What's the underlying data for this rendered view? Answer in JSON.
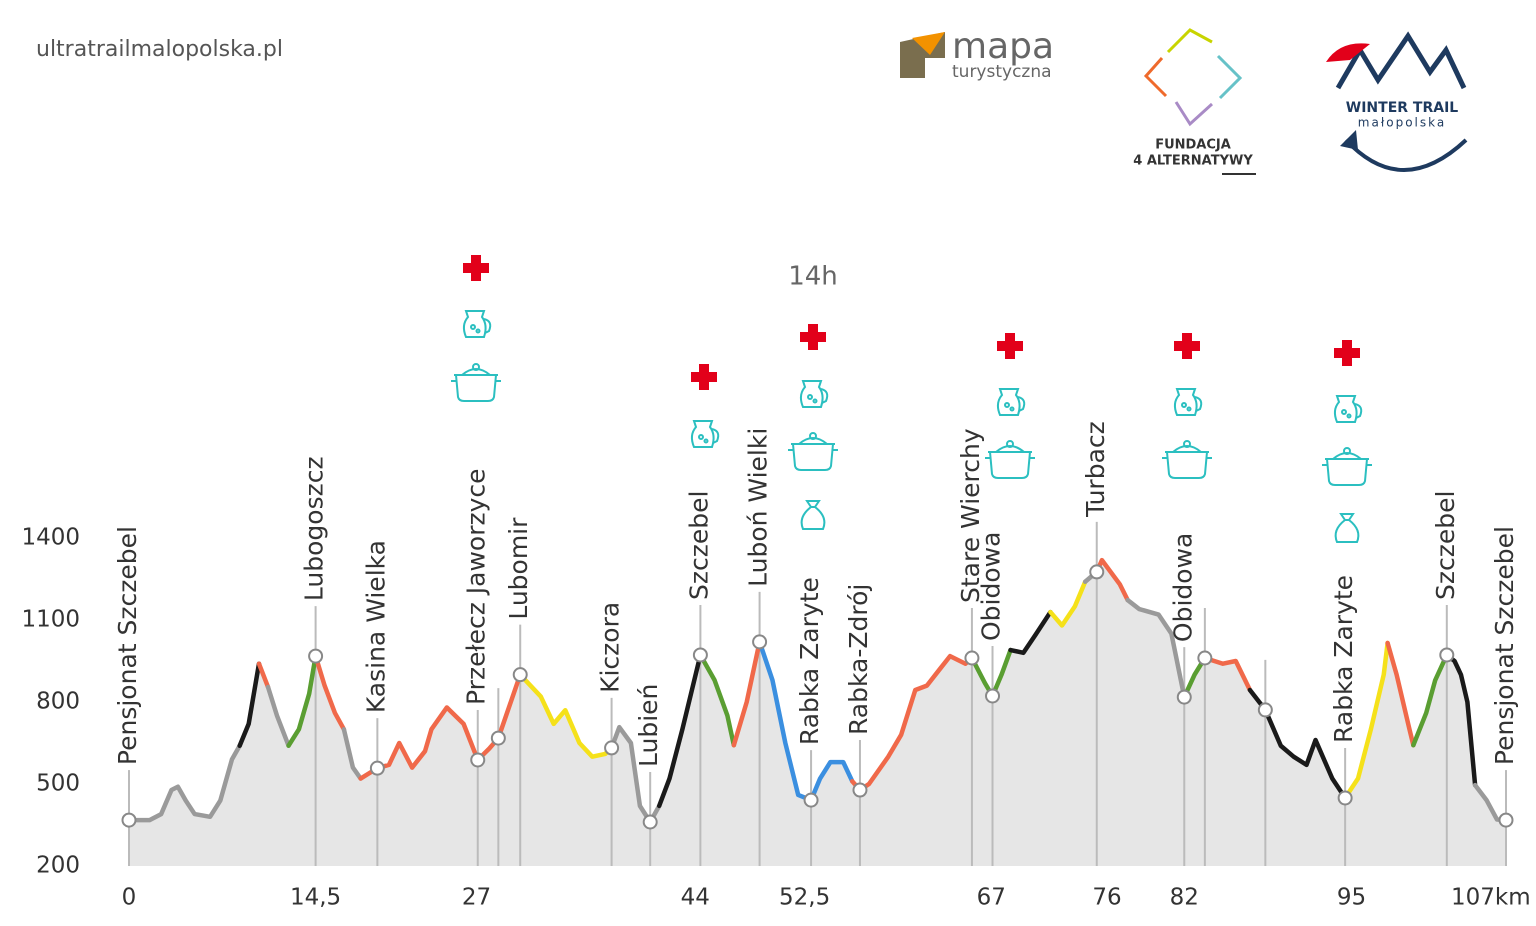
{
  "header": {
    "site": "ultratrailmalopolska.pl",
    "logos": [
      {
        "lines": [
          "mapa",
          "turystyczna"
        ]
      },
      {
        "lines": [
          "FUNDACJA",
          "4 ALTERNATYWY"
        ]
      },
      {
        "lines": [
          "WINTER TRAIL",
          "małopolska"
        ]
      }
    ]
  },
  "chart_data": {
    "type": "elevation-profile",
    "annotation": "14h",
    "area_color": "#e6e6e6",
    "xlim": [
      0,
      107
    ],
    "ylim": [
      200,
      1400
    ],
    "yticks": [
      200,
      500,
      800,
      1100,
      1400
    ],
    "xticks": [
      0,
      {
        "value": 14.5,
        "label": "14,5"
      },
      27,
      44,
      {
        "value": 52.5,
        "label": "52,5"
      },
      67,
      76,
      82,
      95,
      {
        "value": 107,
        "label": "107km"
      }
    ],
    "series": [
      {
        "color": "#9a9a9a",
        "x": [
          0,
          1.6,
          2.5,
          3.3,
          3.8,
          4.4,
          5.1,
          6.3,
          7.1,
          8.0,
          8.6
        ],
        "values": [
          368,
          368,
          390,
          478,
          490,
          440,
          390,
          380,
          440,
          590,
          640
        ]
      },
      {
        "color": "#1a1a1a",
        "x": [
          8.6,
          9.3,
          10.1
        ],
        "values": [
          640,
          720,
          940
        ]
      },
      {
        "color": "#f0694a",
        "x": [
          10.1,
          10.8
        ],
        "values": [
          940,
          855
        ]
      },
      {
        "color": "#9a9a9a",
        "x": [
          10.8,
          11.5,
          12.4
        ],
        "values": [
          855,
          750,
          640
        ]
      },
      {
        "color": "#5a9e32",
        "x": [
          12.4,
          13.2,
          14.0,
          14.5
        ],
        "values": [
          640,
          700,
          830,
          968
        ]
      },
      {
        "color": "#f0694a",
        "x": [
          14.5,
          15.2,
          16.0,
          16.7
        ],
        "values": [
          968,
          860,
          760,
          700
        ]
      },
      {
        "color": "#9a9a9a",
        "x": [
          16.7,
          17.4,
          18.0
        ],
        "values": [
          700,
          560,
          520
        ]
      },
      {
        "color": "#f0694a",
        "x": [
          18.0,
          19.3,
          20.2,
          21.0,
          22.0,
          23.0,
          23.5,
          24.7,
          26.0,
          27.1,
          28.0,
          28.7,
          30.4
        ],
        "values": [
          520,
          558,
          570,
          650,
          560,
          620,
          700,
          780,
          720,
          588,
          630,
          668,
          900
        ]
      },
      {
        "color": "#f5e11a",
        "x": [
          30.4,
          32.0,
          33.0,
          33.9,
          35.0,
          36.0,
          37.0,
          37.5
        ],
        "values": [
          900,
          820,
          720,
          770,
          650,
          600,
          610,
          632
        ]
      },
      {
        "color": "#9a9a9a",
        "x": [
          37.5,
          38.1,
          39.0,
          39.7,
          40.5,
          41.2
        ],
        "values": [
          632,
          708,
          650,
          420,
          361,
          420
        ]
      },
      {
        "color": "#1a1a1a",
        "x": [
          41.2,
          42.0,
          43.0,
          44.4
        ],
        "values": [
          420,
          520,
          700,
          972
        ]
      },
      {
        "color": "#5a9e32",
        "x": [
          44.4,
          45.5,
          46.5,
          47.0
        ],
        "values": [
          972,
          880,
          750,
          642
        ]
      },
      {
        "color": "#f0694a",
        "x": [
          47.0,
          48.0,
          49.0
        ],
        "values": [
          642,
          800,
          1020
        ]
      },
      {
        "color": "#3b8fe0",
        "x": [
          49.0,
          50.0,
          51.0,
          52.0,
          53.0,
          53.7,
          54.5,
          55.5,
          56.2
        ],
        "values": [
          1020,
          880,
          650,
          460,
          441,
          520,
          580,
          580,
          510
        ]
      },
      {
        "color": "#f0694a",
        "x": [
          56.2,
          56.8,
          57.5,
          59.0,
          60.0,
          61.1,
          62.0,
          63.0,
          63.8,
          65.0,
          65.5
        ],
        "values": [
          510,
          478,
          500,
          600,
          680,
          844,
          860,
          920,
          968,
          940,
          961
        ]
      },
      {
        "color": "#5a9e32",
        "x": [
          65.5,
          66.5,
          67.1,
          67.8,
          68.5
        ],
        "values": [
          961,
          870,
          822,
          900,
          990
        ]
      },
      {
        "color": "#1a1a1a",
        "x": [
          68.5,
          69.5,
          70.5,
          71.6
        ],
        "values": [
          990,
          980,
          1050,
          1129
        ]
      },
      {
        "color": "#f5e11a",
        "x": [
          71.6,
          72.5,
          73.5,
          74.3
        ],
        "values": [
          1129,
          1080,
          1150,
          1240
        ]
      },
      {
        "color": "#9a9a9a",
        "x": [
          74.3,
          75.2
        ],
        "values": [
          1240,
          1276
        ]
      },
      {
        "color": "#f0694a",
        "x": [
          75.2,
          75.6,
          77.0,
          77.6
        ],
        "values": [
          1276,
          1319,
          1230,
          1173
        ]
      },
      {
        "color": "#9a9a9a",
        "x": [
          77.6,
          78.5,
          80.0,
          81.0,
          82.0
        ],
        "values": [
          1173,
          1140,
          1120,
          1050,
          818
        ]
      },
      {
        "color": "#5a9e32",
        "x": [
          82.0,
          82.8,
          83.6
        ],
        "values": [
          818,
          900,
          961
        ]
      },
      {
        "color": "#f0694a",
        "x": [
          83.6,
          85.0,
          86.0,
          87.1
        ],
        "values": [
          961,
          940,
          950,
          844
        ]
      },
      {
        "color": "#1a1a1a",
        "x": [
          87.1,
          88.3,
          89.5,
          90.5,
          91.5,
          92.2,
          93.5,
          94.5
        ],
        "values": [
          844,
          771,
          640,
          600,
          570,
          661,
          520,
          449
        ]
      },
      {
        "color": "#f5e11a",
        "x": [
          94.5,
          95.5,
          96.5,
          97.5,
          97.8
        ],
        "values": [
          449,
          520,
          700,
          900,
          1016
        ]
      },
      {
        "color": "#f0694a",
        "x": [
          97.8,
          98.5,
          99.5,
          99.8
        ],
        "values": [
          1016,
          900,
          700,
          642
        ]
      },
      {
        "color": "#5a9e32",
        "x": [
          99.8,
          100.8,
          101.5,
          102.4
        ],
        "values": [
          642,
          760,
          880,
          972
        ]
      },
      {
        "color": "#1a1a1a",
        "x": [
          102.4,
          103.0,
          103.5,
          104.0,
          104.6
        ],
        "values": [
          972,
          950,
          900,
          800,
          496
        ]
      },
      {
        "color": "#9a9a9a",
        "x": [
          104.6,
          105.5,
          106.3,
          107.0
        ],
        "values": [
          496,
          440,
          370,
          368
        ]
      }
    ],
    "waypoints": [
      {
        "label": "Pensjonat Szczebel",
        "km": 0,
        "elevation": 368
      },
      {
        "label": "Lubogoszcz",
        "km": 14.5,
        "elevation": 968
      },
      {
        "label": "Kasina Wielka",
        "km": 19.3,
        "elevation": 558
      },
      {
        "label": "Przełecz Jaworzyce",
        "km": 27.1,
        "elevation": 588
      },
      {
        "label": null,
        "km": 28.7,
        "elevation": 668
      },
      {
        "label": "Lubomir",
        "km": 30.4,
        "elevation": 900
      },
      {
        "label": "Kiczora",
        "km": 37.5,
        "elevation": 632
      },
      {
        "label": "Lubień",
        "km": 40.5,
        "elevation": 361
      },
      {
        "label": "Szczebel",
        "km": 44.4,
        "elevation": 972
      },
      {
        "label": "Luboń Wielki",
        "km": 49,
        "elevation": 1020
      },
      {
        "label": "Rabka Zaryte",
        "km": 53,
        "elevation": 441
      },
      {
        "label": "Rabka-Zdrój",
        "km": 56.8,
        "elevation": 478
      },
      {
        "label": "Stare Wierchy",
        "km": 65.5,
        "elevation": 961
      },
      {
        "label": "Obidowa",
        "km": 67.1,
        "elevation": 822
      },
      {
        "label": "Turbacz",
        "km": 75.2,
        "elevation": 1276
      },
      {
        "label": "Obidowa",
        "km": 82,
        "elevation": 818
      },
      {
        "label": null,
        "km": 83.6,
        "elevation": 961
      },
      {
        "label": null,
        "km": 88.3,
        "elevation": 771
      },
      {
        "label": "Rabka Zaryte",
        "km": 94.5,
        "elevation": 449
      },
      {
        "label": "Szczebel",
        "km": 102.4,
        "elevation": 972
      },
      {
        "label": "Pensjonat Szczebel",
        "km": 107,
        "elevation": 368
      }
    ]
  }
}
